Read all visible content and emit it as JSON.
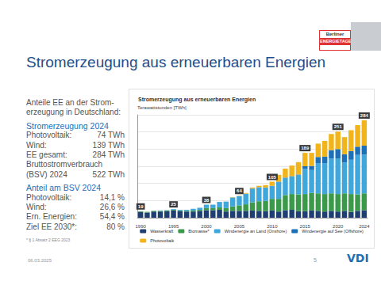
{
  "slide": {
    "title": "Stromerzeugung aus erneuerbaren Energien",
    "logo": [
      "Berliner",
      "ENERGIETAGE"
    ],
    "panel": [
      {
        "text": "Anteile EE an der Strom-"
      },
      {
        "text": "erzeugung in Deutschland:"
      },
      {
        "text": "Stromerzeugung 2024",
        "heading": true
      },
      {
        "text": "Photovoltaik:",
        "value": "74 TWh"
      },
      {
        "text": "Wind:",
        "value": "139 TWh"
      },
      {
        "text": "EE gesamt:",
        "value": "284 TWh"
      },
      {
        "text": "Bruttostromverbrauch"
      },
      {
        "text": "(BSV) 2024",
        "value": "522 TWh"
      },
      {
        "text": "Anteil am BSV 2024",
        "heading": true
      },
      {
        "text": "Photovoltaik:",
        "value": "14,1 %"
      },
      {
        "text": "Wind:",
        "value": "26,6 %"
      },
      {
        "text": "Ern. Energien:",
        "value": "54,4 %"
      },
      {
        "text": "Ziel EE 2030*:",
        "value": "80 %"
      }
    ],
    "footnote": "* § 1 Absatz 2 EEG 2023",
    "date": "06.03.2025",
    "page": "5",
    "brand": "VDI"
  },
  "chart_data": {
    "type": "bar",
    "title": "Stromerzeugung aus erneuerbaren Energien",
    "ylabel": "Terawattstunden [TWh]",
    "stacked": true,
    "grid": true,
    "legend": "bottom",
    "tick_labels": "x",
    "categories": [
      "1990",
      null,
      null,
      null,
      null,
      "1995",
      null,
      null,
      null,
      null,
      "2000",
      null,
      null,
      null,
      null,
      "2005",
      null,
      null,
      null,
      null,
      "2010",
      null,
      null,
      null,
      null,
      "2015",
      null,
      null,
      null,
      null,
      "2020",
      null,
      null,
      null,
      "2024"
    ],
    "ylim": [
      0,
      300
    ],
    "yticks": [
      0,
      50,
      100,
      150,
      200,
      250,
      300
    ],
    "series": [
      {
        "name": "Wasserkraft",
        "color": "#1f3f73",
        "values": [
          17,
          15,
          18,
          18,
          19,
          21,
          19,
          18,
          18,
          20,
          22,
          22,
          23,
          18,
          20,
          20,
          20,
          21,
          20,
          19,
          21,
          18,
          22,
          23,
          19,
          19,
          21,
          20,
          18,
          20,
          18,
          20,
          17,
          20,
          22
        ]
      },
      {
        "name": "Biomasse*",
        "color": "#3a9a4a",
        "values": [
          2,
          2,
          2,
          2,
          2,
          2,
          2,
          2,
          3,
          3,
          6,
          6,
          7,
          10,
          13,
          16,
          19,
          24,
          28,
          30,
          34,
          37,
          44,
          46,
          49,
          50,
          51,
          51,
          51,
          51,
          51,
          51,
          52,
          48,
          49
        ]
      },
      {
        "name": "Windenergie an Land (Onshore)",
        "color": "#3fa7dc",
        "values": [
          0,
          0,
          0,
          1,
          1,
          2,
          2,
          3,
          5,
          6,
          10,
          10,
          16,
          19,
          26,
          27,
          31,
          40,
          41,
          39,
          38,
          49,
          50,
          51,
          57,
          73,
          67,
          88,
          90,
          101,
          104,
          90,
          100,
          115,
          113
        ]
      },
      {
        "name": "Windenergie auf See (Offshore)",
        "color": "#1d6fb8",
        "values": [
          0,
          0,
          0,
          0,
          0,
          0,
          0,
          0,
          0,
          0,
          0,
          0,
          0,
          0,
          0,
          0,
          0,
          0,
          0,
          0,
          0,
          1,
          1,
          1,
          1,
          8,
          12,
          18,
          19,
          25,
          27,
          24,
          25,
          24,
          26
        ]
      },
      {
        "name": "Photovoltaik",
        "color": "#f2b41b",
        "values": [
          0,
          0,
          0,
          0,
          0,
          0,
          0,
          0,
          0,
          0,
          0,
          0,
          0,
          0,
          1,
          1,
          2,
          3,
          4,
          7,
          12,
          20,
          26,
          31,
          36,
          39,
          38,
          39,
          46,
          47,
          51,
          50,
          61,
          63,
          74
        ]
      }
    ],
    "total_labels": {
      "categories": [
        "1990",
        "1995",
        "2000",
        "2005",
        "2010",
        "2015",
        "2020",
        "2024"
      ],
      "values": [
        19,
        25,
        38,
        64,
        105,
        189,
        251,
        284
      ]
    }
  }
}
